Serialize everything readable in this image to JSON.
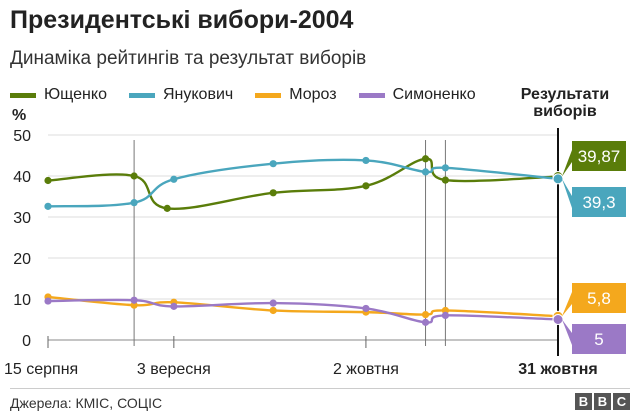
{
  "header": {
    "title": "Президентські вибори-2004",
    "subtitle": "Динаміка рейтингів та результат виборів"
  },
  "results_label_line1": "Результати",
  "results_label_line2": "виборів",
  "footer": {
    "source": "Джерела: КМІС, СОЦІС",
    "logo_letters": [
      "B",
      "B",
      "C"
    ]
  },
  "chart_data": {
    "type": "line",
    "ylabel": "%",
    "ylim": [
      0,
      50
    ],
    "yticks": [
      0,
      10,
      20,
      30,
      40,
      50
    ],
    "x_tick_labels": [
      {
        "date": "2004-08-15",
        "label": "15 серпня"
      },
      {
        "date": "2004-09-03",
        "label": "3 вересня"
      },
      {
        "date": "2004-10-02",
        "label": "2 жовтня"
      },
      {
        "date": "2004-10-31",
        "label": "31 жовтня"
      }
    ],
    "xlim": [
      "2004-08-15",
      "2004-10-31"
    ],
    "result_date": "2004-10-31",
    "grid": true,
    "legend_position": "top",
    "series": [
      {
        "name": "Ющенко",
        "color": "#5a7d0a",
        "points": [
          [
            "2004-08-15",
            38.9
          ],
          [
            "2004-08-28",
            40.0
          ],
          [
            "2004-09-02",
            32.1
          ],
          [
            "2004-09-18",
            35.9
          ],
          [
            "2004-10-02",
            37.6
          ],
          [
            "2004-10-11",
            44.2
          ],
          [
            "2004-10-14",
            39.0
          ],
          [
            "2004-10-31",
            39.87
          ]
        ],
        "result_label": "39,87"
      },
      {
        "name": "Янукович",
        "color": "#4aa6bd",
        "points": [
          [
            "2004-08-15",
            32.6
          ],
          [
            "2004-08-28",
            33.5
          ],
          [
            "2004-09-03",
            39.2
          ],
          [
            "2004-09-18",
            43.0
          ],
          [
            "2004-10-02",
            43.8
          ],
          [
            "2004-10-11",
            41.0
          ],
          [
            "2004-10-14",
            42.0
          ],
          [
            "2004-10-31",
            39.3
          ]
        ],
        "result_label": "39,3"
      },
      {
        "name": "Мороз",
        "color": "#f4a81d",
        "points": [
          [
            "2004-08-15",
            10.5
          ],
          [
            "2004-08-28",
            8.5
          ],
          [
            "2004-09-03",
            9.2
          ],
          [
            "2004-09-18",
            7.2
          ],
          [
            "2004-10-02",
            6.8
          ],
          [
            "2004-10-11",
            6.2
          ],
          [
            "2004-10-14",
            7.2
          ],
          [
            "2004-10-31",
            5.8
          ]
        ],
        "result_label": "5,8"
      },
      {
        "name": "Симоненко",
        "color": "#9b79c6",
        "points": [
          [
            "2004-08-15",
            9.5
          ],
          [
            "2004-08-28",
            9.7
          ],
          [
            "2004-09-03",
            8.2
          ],
          [
            "2004-09-18",
            9.0
          ],
          [
            "2004-10-02",
            7.7
          ],
          [
            "2004-10-11",
            4.3
          ],
          [
            "2004-10-14",
            6.0
          ],
          [
            "2004-10-31",
            5.0
          ]
        ],
        "result_label": "5"
      }
    ]
  }
}
